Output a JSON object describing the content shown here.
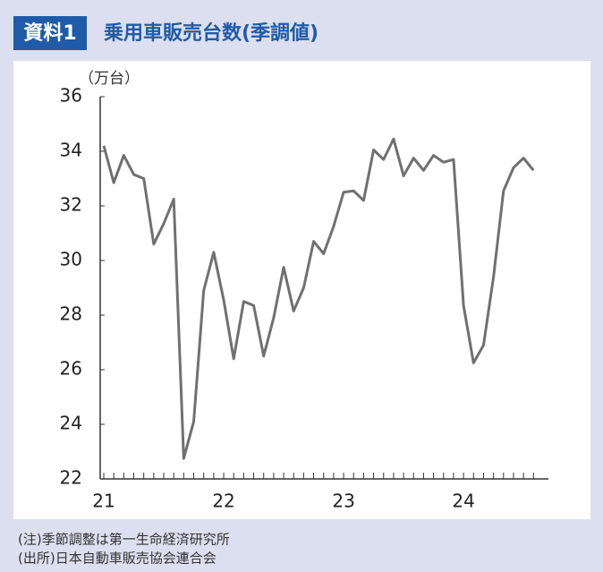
{
  "chart_data": {
    "type": "line",
    "badge": "資料1",
    "title": "乗用車販売台数(季調値)",
    "y_label": "（万台）",
    "notes": [
      "(注)季節調整は第一生命経済研究所",
      "(出所)日本自動車販売協会連合会"
    ],
    "categories": [
      "21",
      null,
      null,
      null,
      null,
      null,
      null,
      null,
      null,
      null,
      null,
      null,
      "22",
      null,
      null,
      null,
      null,
      null,
      null,
      null,
      null,
      null,
      null,
      null,
      "23",
      null,
      null,
      null,
      null,
      null,
      null,
      null,
      null,
      null,
      null,
      null,
      "24",
      null,
      null,
      null,
      null,
      null,
      null,
      null
    ],
    "series": [
      {
        "color": "#707070",
        "values": [
          34.2,
          32.85,
          33.85,
          33.15,
          33.0,
          30.6,
          31.35,
          32.25,
          22.75,
          24.1,
          28.9,
          30.3,
          28.55,
          26.4,
          28.5,
          28.35,
          26.5,
          27.9,
          29.75,
          28.15,
          29.0,
          30.7,
          30.25,
          31.25,
          32.5,
          32.55,
          32.2,
          34.05,
          33.7,
          34.45,
          33.1,
          33.75,
          33.3,
          33.85,
          33.6,
          33.7,
          28.35,
          26.25,
          26.9,
          29.4,
          32.55,
          33.4,
          33.75,
          33.3
        ]
      }
    ],
    "ylim": [
      22,
      36
    ],
    "yticks": [
      22,
      24,
      26,
      28,
      30,
      32,
      34,
      36
    ]
  }
}
